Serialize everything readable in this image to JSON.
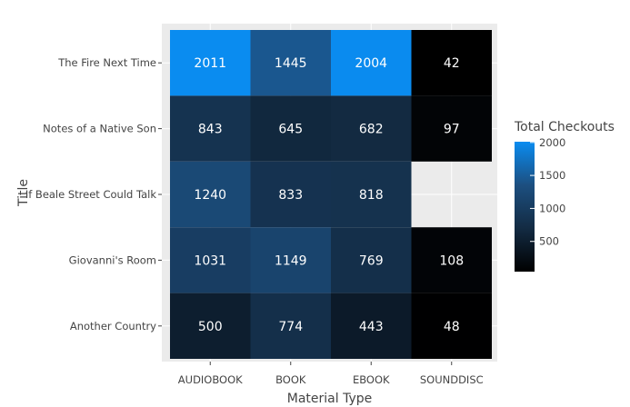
{
  "chart_data": {
    "type": "heatmap",
    "xlabel": "Material Type",
    "ylabel": "Title",
    "x_categories": [
      "AUDIOBOOK",
      "BOOK",
      "EBOOK",
      "SOUNDDISC"
    ],
    "y_categories": [
      "The Fire Next Time",
      "Notes of a Native Son",
      "If Beale Street Could Talk",
      "Giovanni's Room",
      "Another Country"
    ],
    "values": [
      [
        2011,
        1445,
        2004,
        42
      ],
      [
        843,
        645,
        682,
        97
      ],
      [
        1240,
        833,
        818,
        null
      ],
      [
        1031,
        1149,
        769,
        108
      ],
      [
        500,
        774,
        443,
        48
      ]
    ],
    "legend": {
      "title": "Total Checkouts",
      "ticks": [
        500,
        1000,
        1500,
        2000
      ],
      "range": [
        42,
        2011
      ],
      "colors": [
        "#000000",
        "#132b43",
        "#1c4f80",
        "#0a8cf0"
      ]
    },
    "panel_background": "#ebebeb",
    "grid": true
  }
}
